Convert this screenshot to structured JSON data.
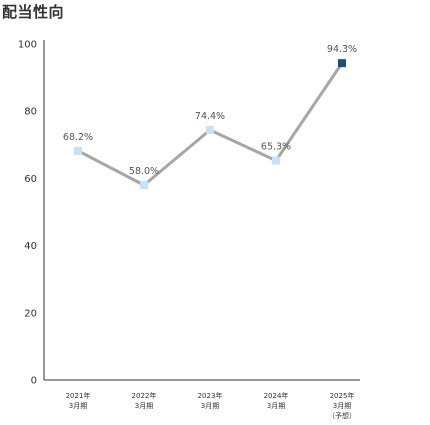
{
  "chart_data": {
    "type": "line",
    "title": "配当性向",
    "categories": [
      [
        "2021年",
        "3月期"
      ],
      [
        "2022年",
        "3月期"
      ],
      [
        "2023年",
        "3月期"
      ],
      [
        "2024年",
        "3月期"
      ],
      [
        "2025年",
        "3月期",
        "（予想）"
      ]
    ],
    "values": [
      68.2,
      58.0,
      74.4,
      65.3,
      94.3
    ],
    "data_labels": [
      "68.2%",
      "58.0%",
      "74.4%",
      "65.3%",
      "94.3%"
    ],
    "y_ticks": [
      0,
      20,
      40,
      60,
      80,
      100
    ],
    "ylim": [
      0,
      100
    ],
    "grid": false,
    "colors": {
      "line": "#a6a6a6",
      "marker": "#c7e2f5",
      "marker_highlight": "#1f4e79",
      "axis": "#333333"
    },
    "highlight_index": 4
  }
}
